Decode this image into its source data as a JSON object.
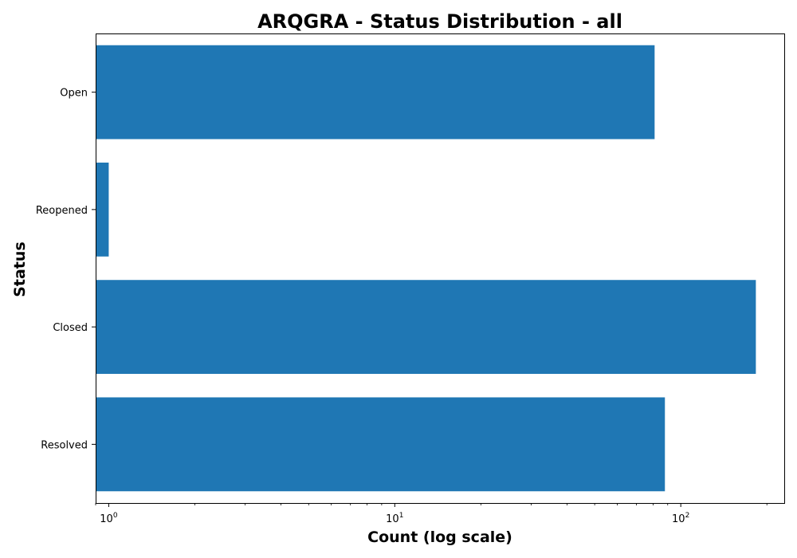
{
  "chart_data": {
    "type": "bar",
    "orientation": "horizontal",
    "title": "ARQGRA - Status Distribution - all",
    "xlabel": "Count (log scale)",
    "ylabel": "Status",
    "x_scale": "log",
    "xlim": [
      0.9,
      230
    ],
    "x_ticks": [
      {
        "base": "10",
        "exp": "0"
      },
      {
        "base": "10",
        "exp": "1"
      },
      {
        "base": "10",
        "exp": "2"
      }
    ],
    "categories": [
      "Open",
      "Reopened",
      "Closed",
      "Resolved"
    ],
    "values": [
      81,
      1,
      183,
      88
    ],
    "bar_color": "#1f77b4",
    "grid": false,
    "legend": "none"
  }
}
